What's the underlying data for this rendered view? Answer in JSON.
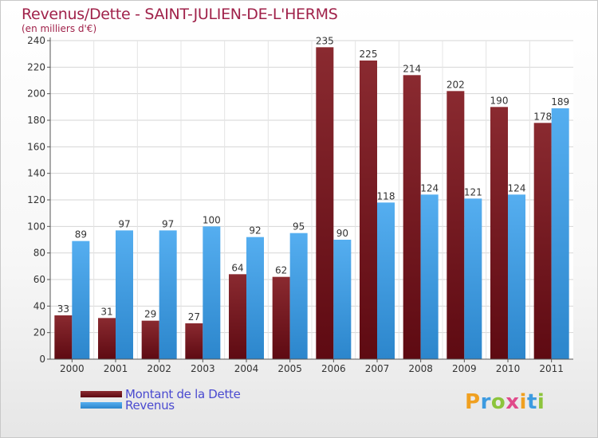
{
  "header": {
    "title": "Revenus/Dette - SAINT-JULIEN-DE-L'HERMS",
    "subtitle": "(en milliers d'€)"
  },
  "colors": {
    "dette": "#7a1a22",
    "revenus": "#3d9be0",
    "title": "#a0224a",
    "legend_text": "#4a4ad0"
  },
  "legend": {
    "dette_label": "Montant de la Dette",
    "revenus_label": "Revenus"
  },
  "logo": {
    "text": "Proxiti",
    "letters": [
      "P",
      "r",
      "o",
      "x",
      "i",
      "t",
      "i"
    ]
  },
  "chart_data": {
    "type": "bar",
    "title": "Revenus/Dette - SAINT-JULIEN-DE-L'HERMS",
    "subtitle": "(en milliers d'€)",
    "xlabel": "",
    "ylabel": "",
    "ylim": [
      0,
      240
    ],
    "yticks": [
      0,
      20,
      40,
      60,
      80,
      100,
      120,
      140,
      160,
      180,
      200,
      220,
      240
    ],
    "categories": [
      "2000",
      "2001",
      "2002",
      "2003",
      "2004",
      "2005",
      "2006",
      "2007",
      "2008",
      "2009",
      "2010",
      "2011"
    ],
    "series": [
      {
        "name": "Montant de la Dette",
        "values": [
          33,
          31,
          29,
          27,
          64,
          62,
          235,
          225,
          214,
          202,
          190,
          178
        ]
      },
      {
        "name": "Revenus",
        "values": [
          89,
          97,
          97,
          100,
          92,
          95,
          90,
          118,
          124,
          121,
          124,
          189
        ]
      }
    ],
    "grid": true,
    "legend_position": "bottom-left"
  }
}
